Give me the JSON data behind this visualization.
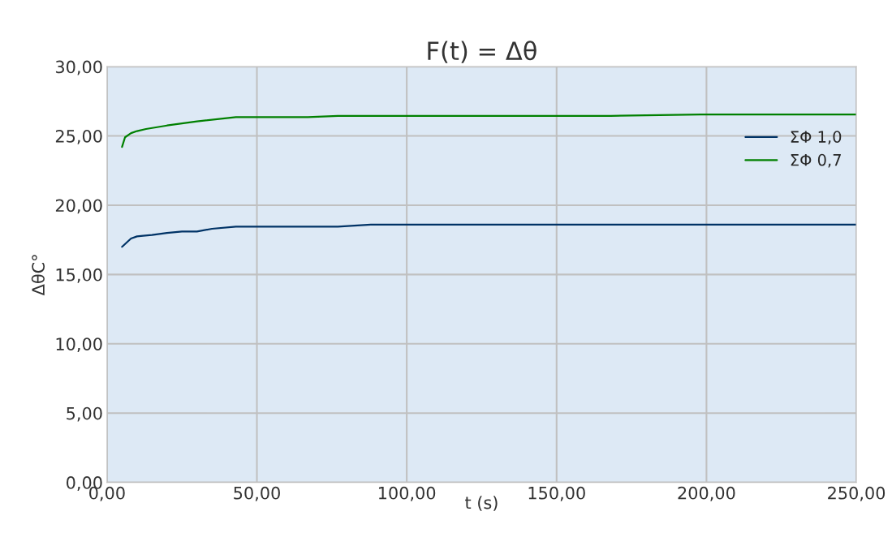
{
  "chart_data": {
    "type": "line",
    "title": "F(t) = Δθ",
    "xlabel": "t (s)",
    "ylabel": "ΔθC°",
    "series": [
      {
        "name": "ΣΦ 1,0",
        "color": "#003366",
        "x": [
          5,
          8,
          10,
          12,
          15,
          20,
          25,
          30,
          35,
          43,
          67,
          77,
          88,
          120,
          170,
          200,
          250
        ],
        "values": [
          17.0,
          17.6,
          17.75,
          17.8,
          17.85,
          18.0,
          18.1,
          18.1,
          18.3,
          18.45,
          18.45,
          18.45,
          18.6,
          18.6,
          18.6,
          18.6,
          18.6
        ]
      },
      {
        "name": "ΣΦ 0,7",
        "color": "#008000",
        "x": [
          5,
          6,
          8,
          10,
          13,
          20,
          30,
          43,
          67,
          77,
          120,
          168,
          198,
          250
        ],
        "values": [
          24.2,
          24.9,
          25.2,
          25.35,
          25.5,
          25.75,
          26.05,
          26.35,
          26.35,
          26.45,
          26.45,
          26.45,
          26.55,
          26.55
        ]
      }
    ],
    "xlim": [
      0,
      250
    ],
    "ylim": [
      0,
      30
    ],
    "xticks": [
      {
        "value": 0,
        "label": "0,00"
      },
      {
        "value": 50,
        "label": "50,00"
      },
      {
        "value": 100,
        "label": "100,00"
      },
      {
        "value": 150,
        "label": "150,00"
      },
      {
        "value": 200,
        "label": "200,00"
      },
      {
        "value": 250,
        "label": "250,00"
      }
    ],
    "yticks": [
      {
        "value": 0,
        "label": "0,00"
      },
      {
        "value": 5,
        "label": "5,00"
      },
      {
        "value": 10,
        "label": "10,00"
      },
      {
        "value": 15,
        "label": "15,00"
      },
      {
        "value": 20,
        "label": "20,00"
      },
      {
        "value": 25,
        "label": "25,00"
      },
      {
        "value": 30,
        "label": "30,00"
      }
    ],
    "grid": true,
    "legend": "right",
    "marker": "none",
    "line_style": "solid"
  }
}
